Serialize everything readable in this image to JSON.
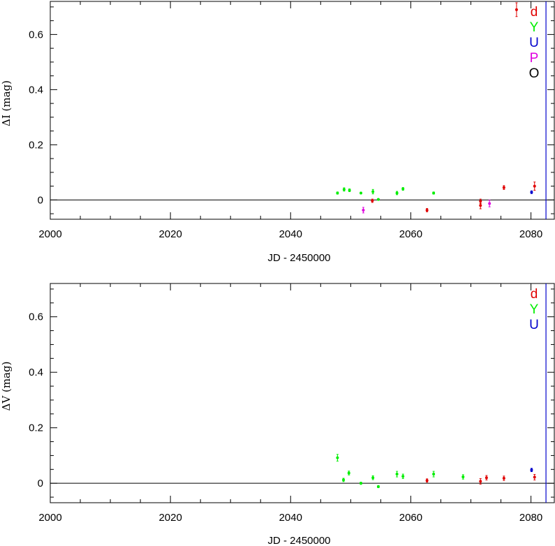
{
  "chart_data": [
    {
      "type": "scatter",
      "panel": "top",
      "xlabel": "JD - 2450000",
      "ylabel": "ΔI (mag)",
      "xlim": [
        2000,
        2084
      ],
      "ylim": [
        -0.07,
        0.72
      ],
      "x_ticks": [
        "2000",
        "2020",
        "2040",
        "2060",
        "2080"
      ],
      "y_ticks": [
        "0",
        "0.2",
        "0.4",
        "0.6"
      ],
      "vertical_line_x": 2082.5,
      "zero_line": true,
      "legend": [
        {
          "label": "d",
          "color": "#e00000"
        },
        {
          "label": "Y",
          "color": "#00ee00"
        },
        {
          "label": "U",
          "color": "#0000cc"
        },
        {
          "label": "P",
          "color": "#e000e0"
        },
        {
          "label": "O",
          "color": "#000000"
        }
      ],
      "series": [
        {
          "label": "Y",
          "color": "#00ee00",
          "points": [
            {
              "x": 2047.8,
              "y": 0.025,
              "err": 0.004
            },
            {
              "x": 2048.9,
              "y": 0.038,
              "err": 0.006
            },
            {
              "x": 2049.8,
              "y": 0.035,
              "err": 0.005
            },
            {
              "x": 2051.7,
              "y": 0.025,
              "err": 0.003
            },
            {
              "x": 2053.7,
              "y": 0.03,
              "err": 0.008
            },
            {
              "x": 2054.6,
              "y": 0.002,
              "err": 0.003
            },
            {
              "x": 2057.7,
              "y": 0.025,
              "err": 0.006
            },
            {
              "x": 2058.7,
              "y": 0.04,
              "err": 0.005
            },
            {
              "x": 2063.8,
              "y": 0.025,
              "err": 0.004
            }
          ]
        },
        {
          "label": "d",
          "color": "#e00000",
          "points": [
            {
              "x": 2053.6,
              "y": -0.003,
              "err": 0.006
            },
            {
              "x": 2062.7,
              "y": -0.037,
              "err": 0.006
            },
            {
              "x": 2071.6,
              "y": -0.02,
              "err": 0.012
            },
            {
              "x": 2071.6,
              "y": -0.005,
              "err": 0.008
            },
            {
              "x": 2075.5,
              "y": 0.045,
              "err": 0.007
            },
            {
              "x": 2077.6,
              "y": 0.69,
              "err": 0.025
            },
            {
              "x": 2080.6,
              "y": 0.05,
              "err": 0.015
            }
          ]
        },
        {
          "label": "P",
          "color": "#e000e0",
          "points": [
            {
              "x": 2052.1,
              "y": -0.037,
              "err": 0.01
            },
            {
              "x": 2073.1,
              "y": -0.013,
              "err": 0.012
            }
          ]
        },
        {
          "label": "U",
          "color": "#0000cc",
          "points": [
            {
              "x": 2080.1,
              "y": 0.028,
              "err": 0.005
            }
          ]
        }
      ]
    },
    {
      "type": "scatter",
      "panel": "bottom",
      "xlabel": "JD - 2450000",
      "ylabel": "ΔV (mag)",
      "xlim": [
        2000,
        2084
      ],
      "ylim": [
        -0.07,
        0.72
      ],
      "x_ticks": [
        "2000",
        "2020",
        "2040",
        "2060",
        "2080"
      ],
      "y_ticks": [
        "0",
        "0.2",
        "0.4",
        "0.6"
      ],
      "vertical_line_x": 2082.5,
      "zero_line": true,
      "legend": [
        {
          "label": "d",
          "color": "#e00000"
        },
        {
          "label": "Y",
          "color": "#00ee00"
        },
        {
          "label": "U",
          "color": "#0000cc"
        }
      ],
      "series": [
        {
          "label": "Y",
          "color": "#00ee00",
          "points": [
            {
              "x": 2047.8,
              "y": 0.092,
              "err": 0.012
            },
            {
              "x": 2048.8,
              "y": 0.012,
              "err": 0.006
            },
            {
              "x": 2049.7,
              "y": 0.037,
              "err": 0.007
            },
            {
              "x": 2051.7,
              "y": 0.0,
              "err": 0.004
            },
            {
              "x": 2053.7,
              "y": 0.02,
              "err": 0.007
            },
            {
              "x": 2054.6,
              "y": -0.012,
              "err": 0.004
            },
            {
              "x": 2057.7,
              "y": 0.033,
              "err": 0.01
            },
            {
              "x": 2058.7,
              "y": 0.025,
              "err": 0.008
            },
            {
              "x": 2063.8,
              "y": 0.033,
              "err": 0.01
            },
            {
              "x": 2068.7,
              "y": 0.023,
              "err": 0.008
            }
          ]
        },
        {
          "label": "d",
          "color": "#e00000",
          "points": [
            {
              "x": 2062.7,
              "y": 0.01,
              "err": 0.006
            },
            {
              "x": 2071.6,
              "y": 0.007,
              "err": 0.01
            },
            {
              "x": 2072.6,
              "y": 0.02,
              "err": 0.008
            },
            {
              "x": 2075.5,
              "y": 0.018,
              "err": 0.008
            },
            {
              "x": 2080.6,
              "y": 0.022,
              "err": 0.01
            }
          ]
        },
        {
          "label": "U",
          "color": "#0000cc",
          "points": [
            {
              "x": 2080.1,
              "y": 0.048,
              "err": 0.006
            }
          ]
        }
      ]
    }
  ]
}
